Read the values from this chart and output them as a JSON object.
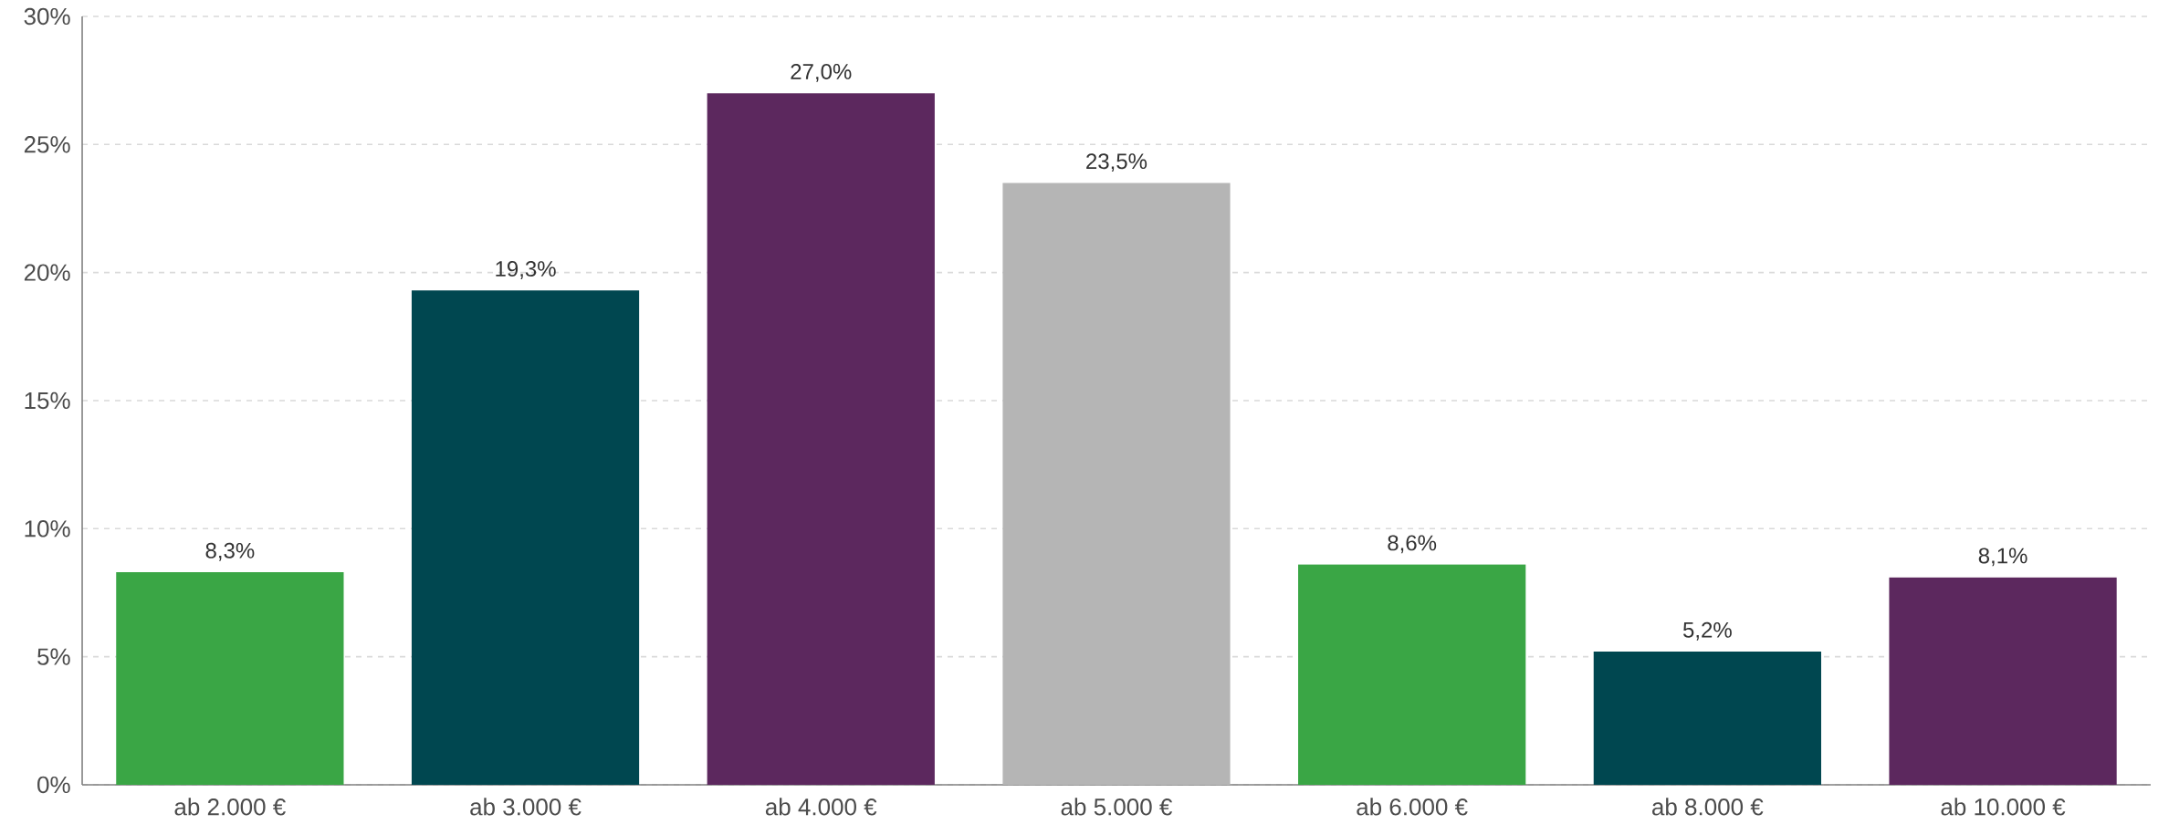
{
  "chart_data": {
    "type": "bar",
    "categories": [
      "ab 2.000 €",
      "ab 3.000 €",
      "ab 4.000 €",
      "ab 5.000 €",
      "ab 6.000 €",
      "ab 8.000 €",
      "ab 10.000 €"
    ],
    "values": [
      8.3,
      19.3,
      27.0,
      23.5,
      8.6,
      5.2,
      8.1
    ],
    "colors": [
      "#3aa645",
      "#004750",
      "#5c285e",
      "#b5b5b5",
      "#3aa645",
      "#004750",
      "#5c285e"
    ],
    "value_labels": [
      "8,3%",
      "19,3%",
      "27,0%",
      "23,5%",
      "8,6%",
      "5,2%",
      "8,1%"
    ],
    "ylim": [
      0,
      30
    ],
    "yticks": [
      {
        "value": 0,
        "label": "0%"
      },
      {
        "value": 5,
        "label": "5%"
      },
      {
        "value": 10,
        "label": "10%"
      },
      {
        "value": 15,
        "label": "15%"
      },
      {
        "value": 20,
        "label": "20%"
      },
      {
        "value": 25,
        "label": "25%"
      },
      {
        "value": 30,
        "label": "30%"
      }
    ],
    "grid": "y"
  }
}
